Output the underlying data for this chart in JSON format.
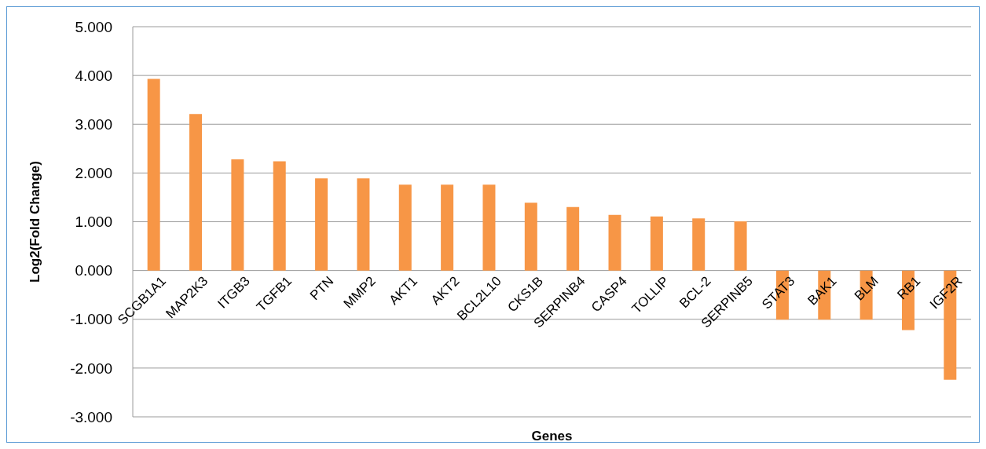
{
  "chart_data": {
    "type": "bar",
    "xlabel": "Genes",
    "ylabel": "Log2(Fold Change)",
    "categories": [
      "SCGB1A1",
      "MAP2K3",
      "ITGB3",
      "TGFB1",
      "PTN",
      "MMP2",
      "AKT1",
      "AKT2",
      "BCL2L10",
      "CKS1B",
      "SERPINB4",
      "CASP4",
      "TOLLIP",
      "BCL-2",
      "SERPINB5",
      "STAT3",
      "BAK1",
      "BLM",
      "RB1",
      "IGF2R"
    ],
    "values": [
      3.93,
      3.21,
      2.28,
      2.24,
      1.89,
      1.89,
      1.76,
      1.76,
      1.76,
      1.39,
      1.3,
      1.14,
      1.11,
      1.07,
      1.01,
      -1.01,
      -1.01,
      -1.01,
      -1.22,
      -2.24
    ],
    "color": "#f79646",
    "ylim": [
      -3,
      5
    ],
    "yticks": [
      {
        "value": -3,
        "label": "-3.000"
      },
      {
        "value": -2,
        "label": "-2.000"
      },
      {
        "value": -1,
        "label": "-1.000"
      },
      {
        "value": 0,
        "label": "0.000"
      },
      {
        "value": 1,
        "label": "1.000"
      },
      {
        "value": 2,
        "label": "2.000"
      },
      {
        "value": 3,
        "label": "3.000"
      },
      {
        "value": 4,
        "label": "4.000"
      },
      {
        "value": 5,
        "label": "5.000"
      }
    ],
    "grid": "y"
  }
}
